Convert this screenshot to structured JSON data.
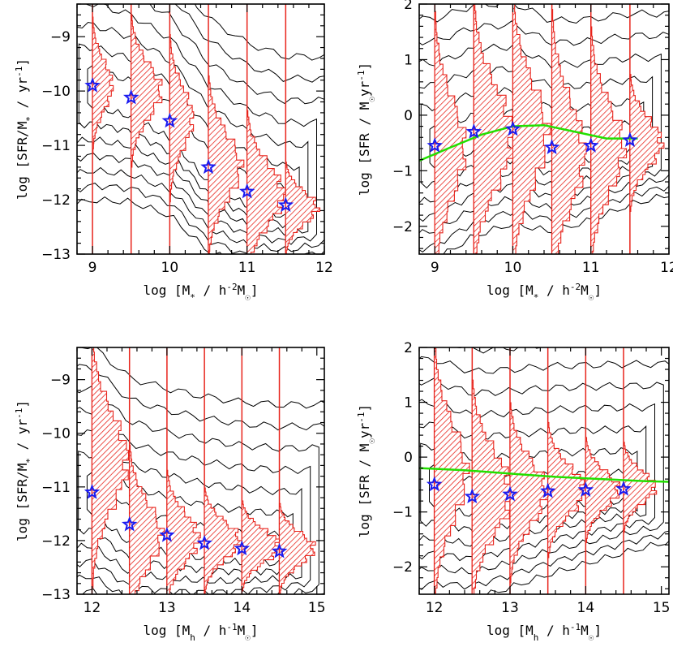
{
  "chart_data": [
    {
      "type": "scatter",
      "panel": "top-left",
      "xlabel": "log [M* / h-2M☉]",
      "ylabel": "log [SFR/M* / yr-1]",
      "xlabel_parts": {
        "pre": "log [M",
        "sub": "*",
        "mid": " / h",
        "sup": "-2",
        "post": "M",
        "sub2": "☉",
        "end": "]"
      },
      "ylabel_parts": {
        "pre": "log [SFR/M",
        "sub": "*",
        "mid": " / yr",
        "sup": "-1",
        "end": "]"
      },
      "xlim": [
        8.8,
        12
      ],
      "ylim": [
        -13,
        -8.4
      ],
      "xticks": [
        9,
        10,
        11,
        12
      ],
      "yticks": [
        -13,
        -12,
        -11,
        -10,
        -9
      ],
      "bin_centers": [
        9.0,
        9.5,
        10.0,
        10.5,
        11.0,
        11.5
      ],
      "medians": [
        -9.9,
        -10.12,
        -10.55,
        -11.4,
        -11.85,
        -12.1
      ],
      "histogram_peaks": [
        -9.9,
        -10.0,
        -10.5,
        -11.4,
        -11.9,
        -12.15
      ],
      "fit_line": null
    },
    {
      "type": "scatter",
      "panel": "top-right",
      "xlabel": "log [M* / h-2M☉]",
      "ylabel": "log [SFR / M☉yr-1]",
      "xlabel_parts": {
        "pre": "log [M",
        "sub": "*",
        "mid": " / h",
        "sup": "-2",
        "post": "M",
        "sub2": "☉",
        "end": "]"
      },
      "ylabel_parts": {
        "pre": "log [SFR / M",
        "sub": "☉",
        "mid": "yr",
        "sup": "-1",
        "end": "]"
      },
      "xlim": [
        8.8,
        12
      ],
      "ylim": [
        -2.5,
        2
      ],
      "xticks": [
        9,
        10,
        11,
        12
      ],
      "yticks": [
        -2,
        -1,
        0,
        1,
        2
      ],
      "bin_centers": [
        9.0,
        9.5,
        10.0,
        10.5,
        11.0,
        11.5
      ],
      "medians": [
        -0.55,
        -0.3,
        -0.25,
        -0.58,
        -0.55,
        -0.45
      ],
      "histogram_peaks": [
        -0.6,
        -0.4,
        -0.35,
        -0.7,
        -0.6,
        -0.5
      ],
      "fit_line": {
        "x": [
          8.8,
          9.2,
          9.6,
          10.0,
          10.4,
          10.8,
          11.2,
          11.6
        ],
        "y": [
          -0.82,
          -0.58,
          -0.35,
          -0.2,
          -0.18,
          -0.3,
          -0.42,
          -0.42
        ]
      }
    },
    {
      "type": "scatter",
      "panel": "bottom-left",
      "xlabel": "log [Mh / h-1M☉]",
      "ylabel": "log [SFR/M* / yr-1]",
      "xlabel_parts": {
        "pre": "log [M",
        "sub": "h",
        "mid": " / h",
        "sup": "-1",
        "post": "M",
        "sub2": "☉",
        "end": "]"
      },
      "ylabel_parts": {
        "pre": "log [SFR/M",
        "sub": "*",
        "mid": " / yr",
        "sup": "-1",
        "end": "]"
      },
      "xlim": [
        11.8,
        15.1
      ],
      "ylim": [
        -13,
        -8.4
      ],
      "xticks": [
        12,
        13,
        14,
        15
      ],
      "yticks": [
        -13,
        -12,
        -11,
        -10,
        -9
      ],
      "bin_centers": [
        12.0,
        12.5,
        13.0,
        13.5,
        14.0,
        14.5
      ],
      "medians": [
        -11.1,
        -11.7,
        -11.9,
        -12.05,
        -12.15,
        -12.2
      ],
      "histogram_peaks": [
        -10.5,
        -11.9,
        -11.95,
        -12.0,
        -12.1,
        -12.15
      ],
      "fit_line": null
    },
    {
      "type": "scatter",
      "panel": "bottom-right",
      "xlabel": "log [Mh / h-1M☉]",
      "ylabel": "log [SFR / M☉yr-1]",
      "xlabel_parts": {
        "pre": "log [M",
        "sub": "h",
        "mid": " / h",
        "sup": "-1",
        "post": "M",
        "sub2": "☉",
        "end": "]"
      },
      "ylabel_parts": {
        "pre": "log [SFR / M",
        "sub": "☉",
        "mid": "yr",
        "sup": "-1",
        "end": "]"
      },
      "xlim": [
        11.8,
        15.1
      ],
      "ylim": [
        -2.5,
        2
      ],
      "xticks": [
        12,
        13,
        14,
        15
      ],
      "yticks": [
        -2,
        -1,
        0,
        1,
        2
      ],
      "bin_centers": [
        12.0,
        12.5,
        13.0,
        13.5,
        14.0,
        14.5
      ],
      "medians": [
        -0.5,
        -0.72,
        -0.68,
        -0.62,
        -0.6,
        -0.58
      ],
      "histogram_peaks": [
        -0.3,
        -0.65,
        -0.65,
        -0.6,
        -0.6,
        -0.55
      ],
      "fit_line": {
        "x": [
          11.8,
          12.4,
          13.0,
          13.6,
          14.2,
          14.8,
          15.1
        ],
        "y": [
          -0.2,
          -0.24,
          -0.3,
          -0.36,
          -0.4,
          -0.44,
          -0.45
        ]
      }
    }
  ]
}
